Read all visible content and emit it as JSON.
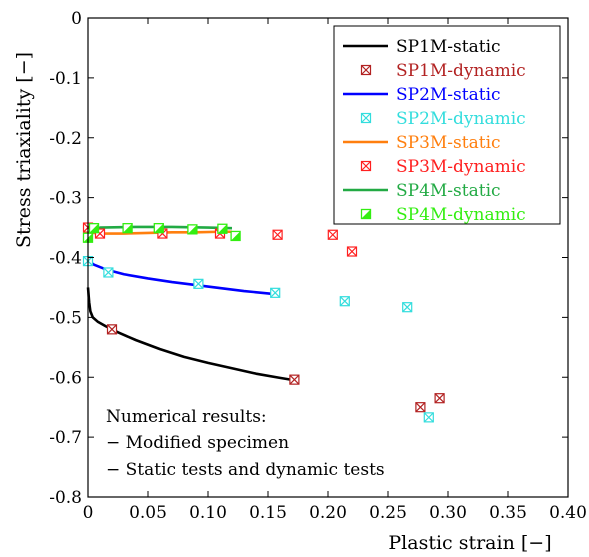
{
  "chart_data": {
    "type": "scatter",
    "xlabel": "Plastic strain [−]",
    "ylabel": "Stress triaxiality [−]",
    "xlim": [
      0,
      0.4
    ],
    "ylim": [
      -0.8,
      0
    ],
    "x_ticks": [
      0,
      0.05,
      0.1,
      0.15,
      0.2,
      0.25,
      0.3,
      0.35,
      0.4
    ],
    "x_tick_labels": [
      "0",
      "0.05",
      "0.10",
      "0.15",
      "0.20",
      "0.25",
      "0.30",
      "0.35",
      "0.40"
    ],
    "y_ticks": [
      0,
      -0.1,
      -0.2,
      -0.3,
      -0.4,
      -0.5,
      -0.6,
      -0.7,
      -0.8
    ],
    "y_tick_labels": [
      "0",
      "-0.1",
      "-0.2",
      "-0.3",
      "-0.4",
      "-0.5",
      "-0.6",
      "-0.7",
      "-0.8"
    ],
    "grid": false,
    "legend_position": "top-right",
    "series": [
      {
        "name": "SP1M-static",
        "kind": "line",
        "color": "#000000",
        "x": [
          0,
          0.001,
          0.002,
          0.004,
          0.008,
          0.015,
          0.025,
          0.04,
          0.06,
          0.08,
          0.1,
          0.12,
          0.14,
          0.16,
          0.172
        ],
        "y": [
          -0.45,
          -0.475,
          -0.49,
          -0.5,
          -0.507,
          -0.515,
          -0.525,
          -0.538,
          -0.553,
          -0.566,
          -0.576,
          -0.585,
          -0.594,
          -0.601,
          -0.605
        ]
      },
      {
        "name": "SP1M-dynamic",
        "kind": "scatter",
        "marker": "boxx",
        "color": "#b22222",
        "x": [
          0.02,
          0.172,
          0.277,
          0.293
        ],
        "y": [
          -0.52,
          -0.604,
          -0.65,
          -0.635
        ]
      },
      {
        "name": "SP2M-static",
        "kind": "line",
        "color": "#0000ff",
        "x": [
          0,
          0.005,
          0.015,
          0.03,
          0.05,
          0.07,
          0.09,
          0.11,
          0.13,
          0.15,
          0.155
        ],
        "y": [
          -0.405,
          -0.412,
          -0.42,
          -0.428,
          -0.435,
          -0.441,
          -0.446,
          -0.451,
          -0.456,
          -0.46,
          -0.461
        ]
      },
      {
        "name": "SP2M-dynamic",
        "kind": "scatter",
        "marker": "boxx",
        "color": "#33dddd",
        "x": [
          0,
          0.017,
          0.092,
          0.156,
          0.214,
          0.266,
          0.284
        ],
        "y": [
          -0.406,
          -0.425,
          -0.444,
          -0.459,
          -0.473,
          -0.483,
          -0.667
        ]
      },
      {
        "name": "SP3M-static",
        "kind": "line",
        "color": "#ff7f0e",
        "x": [
          0,
          0.01,
          0.03,
          0.05,
          0.07,
          0.09,
          0.11,
          0.12
        ],
        "y": [
          -0.358,
          -0.36,
          -0.36,
          -0.359,
          -0.358,
          -0.358,
          -0.357,
          -0.357
        ]
      },
      {
        "name": "SP3M-dynamic",
        "kind": "scatter",
        "marker": "boxx",
        "color": "#ff2020",
        "x": [
          0,
          0.01,
          0.062,
          0.11,
          0.158,
          0.204,
          0.22
        ],
        "y": [
          -0.35,
          -0.36,
          -0.36,
          -0.36,
          -0.362,
          -0.362,
          -0.39
        ]
      },
      {
        "name": "SP4M-static",
        "kind": "line",
        "color": "#22aa44",
        "x": [
          0,
          0.002,
          0.01,
          0.04,
          0.07,
          0.1,
          0.12
        ],
        "y": [
          -0.375,
          -0.36,
          -0.35,
          -0.349,
          -0.349,
          -0.35,
          -0.351
        ]
      },
      {
        "name": "SP4M-dynamic",
        "kind": "scatter",
        "marker": "halfbox",
        "color": "#33ee11",
        "x": [
          0,
          0.005,
          0.033,
          0.059,
          0.087,
          0.112,
          0.123
        ],
        "y": [
          -0.367,
          -0.351,
          -0.351,
          -0.351,
          -0.353,
          -0.352,
          -0.364
        ]
      }
    ],
    "annotations": [
      "Numerical results:",
      "− Modified specimen",
      "− Static tests and dynamic tests"
    ]
  }
}
